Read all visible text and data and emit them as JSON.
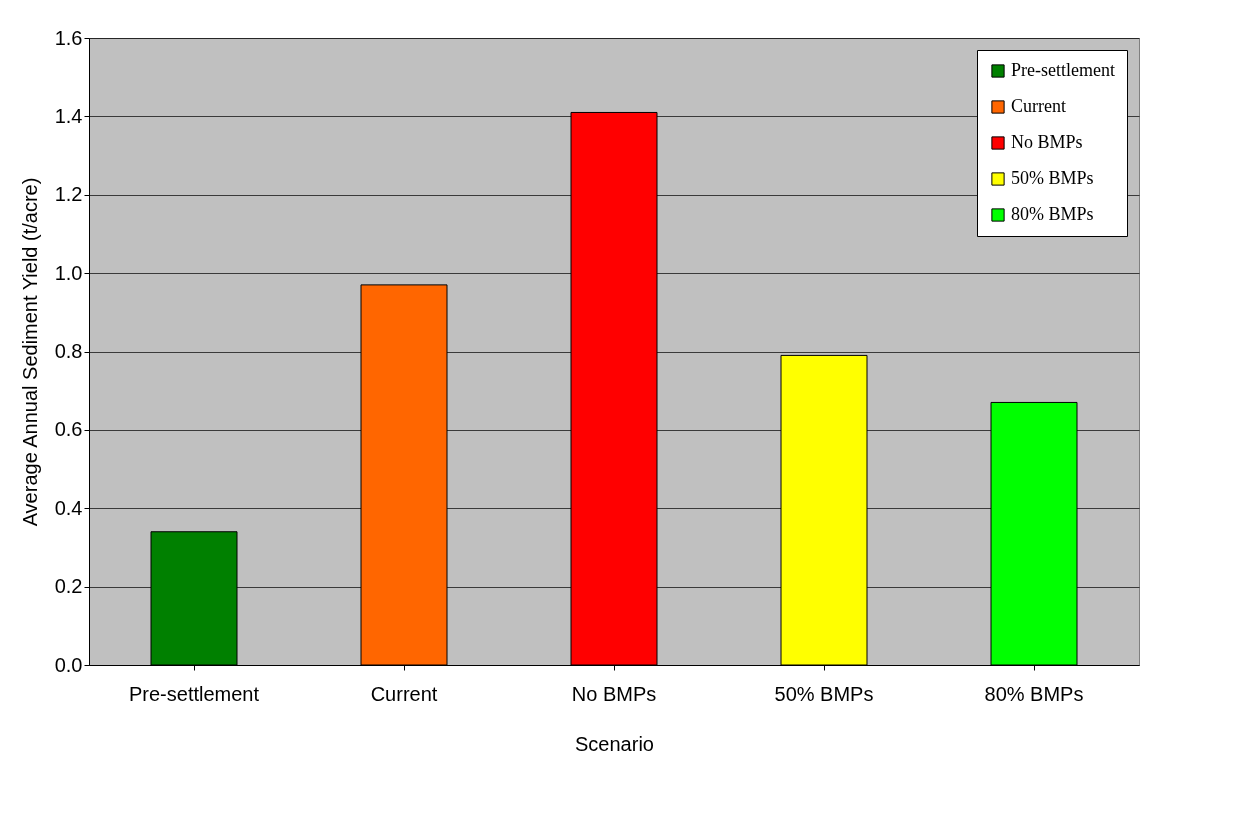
{
  "chart_data": {
    "type": "bar",
    "xlabel": "Scenario",
    "ylabel": "Average Annual Sediment Yield (t/acre)",
    "categories": [
      "Pre-settlement",
      "Current",
      "No BMPs",
      "50% BMPs",
      "80% BMPs"
    ],
    "series": [
      {
        "name": "Pre-settlement",
        "color": "#008000",
        "values": [
          0.34,
          null,
          null,
          null,
          null
        ]
      },
      {
        "name": "Current",
        "color": "#ff6600",
        "values": [
          null,
          0.97,
          null,
          null,
          null
        ]
      },
      {
        "name": "No BMPs",
        "color": "#ff0000",
        "values": [
          null,
          null,
          1.41,
          null,
          null
        ]
      },
      {
        "name": "50% BMPs",
        "color": "#ffff00",
        "values": [
          null,
          null,
          null,
          0.79,
          null
        ]
      },
      {
        "name": "80% BMPs",
        "color": "#00ff00",
        "values": [
          null,
          null,
          null,
          null,
          0.67
        ]
      }
    ],
    "ylim": [
      0,
      1.6
    ],
    "yticks": [
      {
        "value": 0,
        "label": "0.0"
      },
      0.2,
      0.4,
      0.6,
      0.8,
      {
        "value": 1,
        "label": "1.0"
      },
      1.2,
      1.4,
      1.6
    ],
    "grid": "y",
    "legend": "top right"
  }
}
